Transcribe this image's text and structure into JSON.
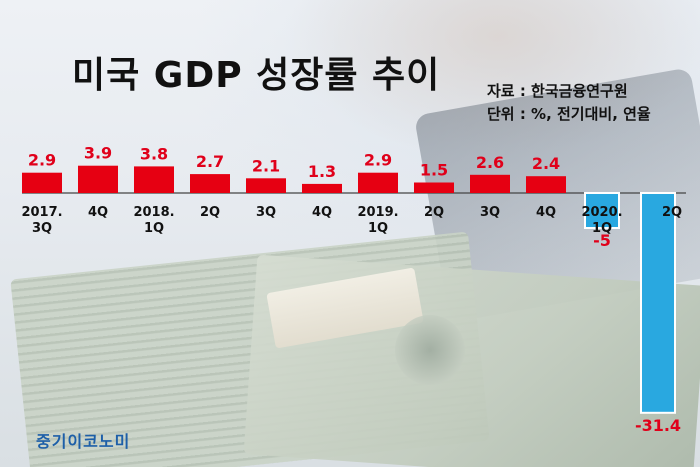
{
  "title": "미국 GDP 성장률 추이",
  "source": "자료 : 한국금융연구원",
  "unit": "단위 : %, 전기대비, 연율",
  "brand": "중기이코노미",
  "colors": {
    "positive": "#e60012",
    "negative": "#29a8e0",
    "value_positive": "#e0001a",
    "value_negative": "#e0001a",
    "baseline": "#444444"
  },
  "chart_data": {
    "type": "bar",
    "title": "미국 GDP 성장률 추이",
    "xlabel": "",
    "ylabel": "",
    "categories": [
      {
        "label": "2017.",
        "sub": "3Q"
      },
      {
        "label": "4Q",
        "sub": ""
      },
      {
        "label": "2018.",
        "sub": "1Q"
      },
      {
        "label": "2Q",
        "sub": ""
      },
      {
        "label": "3Q",
        "sub": ""
      },
      {
        "label": "4Q",
        "sub": ""
      },
      {
        "label": "2019.",
        "sub": "1Q"
      },
      {
        "label": "2Q",
        "sub": ""
      },
      {
        "label": "3Q",
        "sub": ""
      },
      {
        "label": "4Q",
        "sub": ""
      },
      {
        "label": "2020.",
        "sub": "1Q"
      },
      {
        "label": "2Q",
        "sub": ""
      }
    ],
    "values": [
      2.9,
      3.9,
      3.8,
      2.7,
      2.1,
      1.3,
      2.9,
      1.5,
      2.6,
      2.4,
      -5,
      -31.4
    ],
    "value_labels": [
      "2.9",
      "3.9",
      "3.8",
      "2.7",
      "2.1",
      "1.3",
      "2.9",
      "1.5",
      "2.6",
      "2.4",
      "-5",
      "-31.4"
    ],
    "grid": false,
    "legend": "none"
  }
}
